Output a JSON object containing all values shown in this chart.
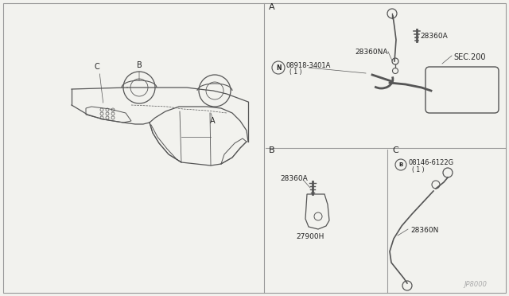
{
  "bg_color": "#f2f2ee",
  "line_color": "#555555",
  "text_color": "#222222",
  "border_color": "#999999",
  "fig_width": 6.4,
  "fig_height": 3.72,
  "dpi": 100,
  "label_A": "A",
  "label_B": "B",
  "label_C": "C",
  "part_28360A": "28360A",
  "part_28360NA": "28360NA",
  "part_N08918": "08918-3401A",
  "part_N08918_sub": "( 1 )",
  "part_SEC200": "SEC.200",
  "part_27900H": "27900H",
  "part_B08146": "08146-6122G",
  "part_B08146_sub": "( 1 )",
  "part_28360N": "28360N",
  "part_num": "JP8000"
}
